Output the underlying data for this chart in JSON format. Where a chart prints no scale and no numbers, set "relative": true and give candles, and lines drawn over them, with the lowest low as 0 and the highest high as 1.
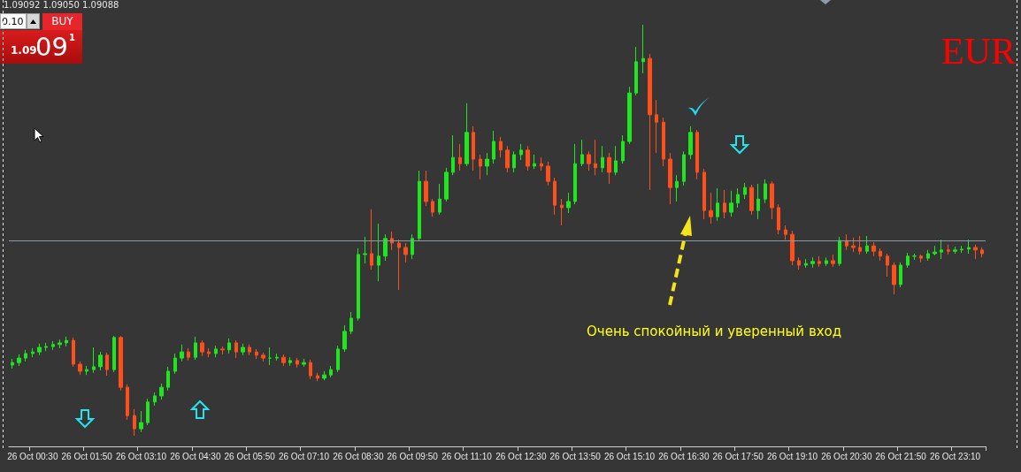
{
  "chart_data": {
    "type": "candlestick",
    "relative": true,
    "categories": [
      null,
      null,
      null,
      "26 Oct 00:30",
      null,
      null,
      null,
      null,
      null,
      null,
      null,
      "26 Oct 01:50",
      null,
      null,
      null,
      null,
      null,
      null,
      null,
      "26 Oct 03:10",
      null,
      null,
      null,
      null,
      null,
      null,
      null,
      "26 Oct 04:30",
      null,
      null,
      null,
      null,
      null,
      null,
      null,
      "26 Oct 05:50",
      null,
      null,
      null,
      null,
      null,
      null,
      null,
      "26 Oct 07:10",
      null,
      null,
      null,
      null,
      null,
      null,
      null,
      "26 Oct 08:30",
      null,
      null,
      null,
      null,
      null,
      null,
      null,
      "26 Oct 09:50",
      null,
      null,
      null,
      null,
      null,
      null,
      null,
      "26 Oct 11:10",
      null,
      null,
      null,
      null,
      null,
      null,
      null,
      "26 Oct 12:30",
      null,
      null,
      null,
      null,
      null,
      null,
      null,
      "26 Oct 13:50",
      null,
      null,
      null,
      null,
      null,
      null,
      null,
      "26 Oct 15:10",
      null,
      null,
      null,
      null,
      null,
      null,
      null,
      "26 Oct 16:30",
      null,
      null,
      null,
      null,
      null,
      null,
      null,
      "26 Oct 17:50",
      null,
      null,
      null,
      null,
      null,
      null,
      null,
      "26 Oct 19:10",
      null,
      null,
      null,
      null,
      null,
      null,
      null,
      "26 Oct 20:30",
      null,
      null,
      null,
      null,
      null,
      null,
      null,
      "26 Oct 21:50",
      null,
      null,
      null,
      null,
      null,
      null,
      null,
      "26 Oct 23:10",
      null,
      null,
      null,
      null
    ],
    "ohlc": [
      [
        0.172,
        0.187,
        0.163,
        0.178
      ],
      [
        0.178,
        0.198,
        0.17,
        0.189
      ],
      [
        0.189,
        0.209,
        0.181,
        0.2
      ],
      [
        0.2,
        0.213,
        0.191,
        0.204
      ],
      [
        0.204,
        0.224,
        0.196,
        0.215
      ],
      [
        0.215,
        0.226,
        0.206,
        0.217
      ],
      [
        0.217,
        0.23,
        0.209,
        0.222
      ],
      [
        0.222,
        0.234,
        0.213,
        0.226
      ],
      [
        0.226,
        0.241,
        0.217,
        0.232
      ],
      [
        0.232,
        0.239,
        0.168,
        0.174
      ],
      [
        0.174,
        0.181,
        0.148,
        0.157
      ],
      [
        0.157,
        0.17,
        0.148,
        0.161
      ],
      [
        0.161,
        0.215,
        0.153,
        0.168
      ],
      [
        0.168,
        0.204,
        0.159,
        0.196
      ],
      [
        0.196,
        0.202,
        0.146,
        0.161
      ],
      [
        0.161,
        0.243,
        0.155,
        0.239
      ],
      [
        0.239,
        0.243,
        0.11,
        0.118
      ],
      [
        0.118,
        0.125,
        0.039,
        0.049
      ],
      [
        0.049,
        0.065,
        0,
        0.017
      ],
      [
        0.017,
        0.06,
        0.009,
        0.032
      ],
      [
        0.032,
        0.09,
        0.026,
        0.082
      ],
      [
        0.082,
        0.105,
        0.073,
        0.097
      ],
      [
        0.097,
        0.127,
        0.088,
        0.118
      ],
      [
        0.118,
        0.168,
        0.11,
        0.157
      ],
      [
        0.157,
        0.2,
        0.151,
        0.189
      ],
      [
        0.189,
        0.222,
        0.181,
        0.204
      ],
      [
        0.204,
        0.213,
        0.183,
        0.191
      ],
      [
        0.191,
        0.241,
        0.185,
        0.226
      ],
      [
        0.226,
        0.232,
        0.194,
        0.204
      ],
      [
        0.204,
        0.213,
        0.191,
        0.2
      ],
      [
        0.2,
        0.219,
        0.191,
        0.211
      ],
      [
        0.211,
        0.217,
        0.198,
        0.209
      ],
      [
        0.209,
        0.237,
        0.2,
        0.226
      ],
      [
        0.226,
        0.232,
        0.189,
        0.204
      ],
      [
        0.204,
        0.224,
        0.196,
        0.215
      ],
      [
        0.215,
        0.222,
        0.196,
        0.204
      ],
      [
        0.204,
        0.211,
        0.187,
        0.196
      ],
      [
        0.196,
        0.202,
        0.181,
        0.189
      ],
      [
        0.189,
        0.215,
        0.172,
        0.189
      ],
      [
        0.189,
        0.2,
        0.183,
        0.191
      ],
      [
        0.191,
        0.198,
        0.17,
        0.178
      ],
      [
        0.178,
        0.191,
        0.17,
        0.183
      ],
      [
        0.183,
        0.189,
        0.166,
        0.174
      ],
      [
        0.174,
        0.187,
        0.168,
        0.178
      ],
      [
        0.178,
        0.185,
        0.138,
        0.146
      ],
      [
        0.146,
        0.153,
        0.133,
        0.14
      ],
      [
        0.14,
        0.157,
        0.135,
        0.148
      ],
      [
        0.148,
        0.17,
        0.142,
        0.161
      ],
      [
        0.161,
        0.219,
        0.155,
        0.211
      ],
      [
        0.211,
        0.269,
        0.204,
        0.254
      ],
      [
        0.254,
        0.301,
        0.247,
        0.286
      ],
      [
        0.286,
        0.456,
        0.28,
        0.441
      ],
      [
        0.441,
        0.484,
        0.419,
        0.443
      ],
      [
        0.443,
        0.551,
        0.404,
        0.415
      ],
      [
        0.415,
        0.516,
        0.376,
        0.437
      ],
      [
        0.437,
        0.49,
        0.426,
        0.48
      ],
      [
        0.48,
        0.497,
        0.452,
        0.469
      ],
      [
        0.469,
        0.477,
        0.355,
        0.458
      ],
      [
        0.458,
        0.469,
        0.422,
        0.441
      ],
      [
        0.441,
        0.49,
        0.43,
        0.48
      ],
      [
        0.48,
        0.645,
        0.473,
        0.619
      ],
      [
        0.619,
        0.645,
        0.559,
        0.57
      ],
      [
        0.57,
        0.576,
        0.533,
        0.544
      ],
      [
        0.544,
        0.613,
        0.538,
        0.576
      ],
      [
        0.576,
        0.652,
        0.57,
        0.641
      ],
      [
        0.641,
        0.731,
        0.634,
        0.677
      ],
      [
        0.677,
        0.71,
        0.645,
        0.662
      ],
      [
        0.662,
        0.809,
        0.656,
        0.738
      ],
      [
        0.738,
        0.753,
        0.645,
        0.673
      ],
      [
        0.673,
        0.684,
        0.624,
        0.656
      ],
      [
        0.656,
        0.688,
        0.634,
        0.673
      ],
      [
        0.673,
        0.742,
        0.662,
        0.716
      ],
      [
        0.716,
        0.727,
        0.677,
        0.695
      ],
      [
        0.695,
        0.705,
        0.641,
        0.652
      ],
      [
        0.652,
        0.692,
        0.641,
        0.684
      ],
      [
        0.684,
        0.71,
        0.671,
        0.695
      ],
      [
        0.695,
        0.705,
        0.645,
        0.656
      ],
      [
        0.656,
        0.684,
        0.649,
        0.662
      ],
      [
        0.662,
        0.677,
        0.645,
        0.656
      ],
      [
        0.656,
        0.667,
        0.609,
        0.619
      ],
      [
        0.619,
        0.628,
        0.538,
        0.561
      ],
      [
        0.561,
        0.576,
        0.512,
        0.555
      ],
      [
        0.555,
        0.591,
        0.542,
        0.57
      ],
      [
        0.57,
        0.71,
        0.563,
        0.662
      ],
      [
        0.662,
        0.72,
        0.656,
        0.684
      ],
      [
        0.684,
        0.692,
        0.645,
        0.662
      ],
      [
        0.662,
        0.72,
        0.634,
        0.652
      ],
      [
        0.652,
        0.705,
        0.641,
        0.677
      ],
      [
        0.677,
        0.688,
        0.613,
        0.641
      ],
      [
        0.641,
        0.705,
        0.634,
        0.669
      ],
      [
        0.669,
        0.731,
        0.662,
        0.716
      ],
      [
        0.716,
        0.849,
        0.71,
        0.834
      ],
      [
        0.834,
        0.946,
        0.828,
        0.91
      ],
      [
        0.91,
        1,
        0.882,
        0.918
      ],
      [
        0.918,
        0.929,
        0.598,
        0.781
      ],
      [
        0.781,
        0.817,
        0.688,
        0.763
      ],
      [
        0.763,
        0.774,
        0.656,
        0.673
      ],
      [
        0.673,
        0.688,
        0.563,
        0.604
      ],
      [
        0.604,
        0.634,
        0.57,
        0.619
      ],
      [
        0.619,
        0.692,
        0.609,
        0.684
      ],
      [
        0.684,
        0.753,
        0.673,
        0.738
      ],
      [
        0.738,
        0.744,
        0.624,
        0.641
      ],
      [
        0.641,
        0.649,
        0.527,
        0.548
      ],
      [
        0.548,
        0.591,
        0.516,
        0.533
      ],
      [
        0.533,
        0.602,
        0.523,
        0.566
      ],
      [
        0.566,
        0.598,
        0.529,
        0.544
      ],
      [
        0.544,
        0.596,
        0.533,
        0.566
      ],
      [
        0.566,
        0.602,
        0.555,
        0.587
      ],
      [
        0.587,
        0.615,
        0.576,
        0.604
      ],
      [
        0.604,
        0.611,
        0.538,
        0.548
      ],
      [
        0.548,
        0.613,
        0.527,
        0.576
      ],
      [
        0.576,
        0.624,
        0.566,
        0.613
      ],
      [
        0.613,
        0.619,
        0.527,
        0.555
      ],
      [
        0.555,
        0.563,
        0.49,
        0.501
      ],
      [
        0.501,
        0.512,
        0.477,
        0.49
      ],
      [
        0.49,
        0.499,
        0.415,
        0.426
      ],
      [
        0.426,
        0.434,
        0.404,
        0.415
      ],
      [
        0.415,
        0.43,
        0.409,
        0.419
      ],
      [
        0.419,
        0.434,
        0.409,
        0.424
      ],
      [
        0.424,
        0.437,
        0.411,
        0.419
      ],
      [
        0.419,
        0.434,
        0.413,
        0.426
      ],
      [
        0.426,
        0.441,
        0.411,
        0.419
      ],
      [
        0.419,
        0.484,
        0.413,
        0.475
      ],
      [
        0.475,
        0.49,
        0.452,
        0.462
      ],
      [
        0.462,
        0.482,
        0.447,
        0.458
      ],
      [
        0.458,
        0.486,
        0.441,
        0.449
      ],
      [
        0.449,
        0.486,
        0.443,
        0.462
      ],
      [
        0.462,
        0.471,
        0.437,
        0.449
      ],
      [
        0.449,
        0.456,
        0.426,
        0.437
      ],
      [
        0.437,
        0.443,
        0.387,
        0.415
      ],
      [
        0.415,
        0.422,
        0.344,
        0.368
      ],
      [
        0.368,
        0.422,
        0.361,
        0.415
      ],
      [
        0.415,
        0.445,
        0.409,
        0.437
      ],
      [
        0.437,
        0.443,
        0.428,
        0.437
      ],
      [
        0.437,
        0.441,
        0.422,
        0.432
      ],
      [
        0.432,
        0.452,
        0.426,
        0.443
      ],
      [
        0.443,
        0.462,
        0.439,
        0.447
      ],
      [
        0.447,
        0.477,
        0.43,
        0.452
      ],
      [
        0.452,
        0.465,
        0.441,
        0.449
      ],
      [
        0.449,
        0.46,
        0.443,
        0.452
      ],
      [
        0.452,
        0.462,
        0.445,
        0.454
      ],
      [
        0.454,
        0.477,
        0.443,
        0.458
      ],
      [
        0.458,
        0.465,
        0.43,
        0.452
      ],
      [
        0.452,
        0.458,
        0.434,
        0.443
      ]
    ],
    "colors": [
      "#1fe61f",
      "#1fe61f",
      "#1fe61f",
      "#1fe61f",
      "#1fe61f",
      "#1fe61f",
      "#1fe61f",
      "#1fe61f",
      "#1fe61f",
      "#ff4f1a",
      "#ff4f1a",
      "#1fe61f",
      "#1fe61f",
      "#1fe61f",
      "#ff4f1a",
      "#1fe61f",
      "#ff4f1a",
      "#ff4f1a",
      "#ff4f1a",
      "#1fe61f",
      "#1fe61f",
      "#1fe61f",
      "#1fe61f",
      "#1fe61f",
      "#1fe61f",
      "#1fe61f",
      "#ff4f1a",
      "#1fe61f",
      "#ff4f1a",
      "#ff4f1a",
      "#1fe61f",
      "#ff4f1a",
      "#1fe61f",
      "#ff4f1a",
      "#1fe61f",
      "#ff4f1a",
      "#ff4f1a",
      "#ff4f1a",
      "#1fe61f",
      "#1fe61f",
      "#ff4f1a",
      "#1fe61f",
      "#ff4f1a",
      "#1fe61f",
      "#ff4f1a",
      "#ff4f1a",
      "#1fe61f",
      "#1fe61f",
      "#1fe61f",
      "#1fe61f",
      "#1fe61f",
      "#1fe61f",
      "#1fe61f",
      "#ff4f1a",
      "#1fe61f",
      "#1fe61f",
      "#ff4f1a",
      "#ff4f1a",
      "#ff4f1a",
      "#1fe61f",
      "#1fe61f",
      "#ff4f1a",
      "#ff4f1a",
      "#1fe61f",
      "#1fe61f",
      "#1fe61f",
      "#ff4f1a",
      "#1fe61f",
      "#ff4f1a",
      "#ff4f1a",
      "#1fe61f",
      "#1fe61f",
      "#ff4f1a",
      "#ff4f1a",
      "#1fe61f",
      "#1fe61f",
      "#ff4f1a",
      "#1fe61f",
      "#ff4f1a",
      "#ff4f1a",
      "#ff4f1a",
      "#ff4f1a",
      "#1fe61f",
      "#1fe61f",
      "#1fe61f",
      "#ff4f1a",
      "#ff4f1a",
      "#1fe61f",
      "#ff4f1a",
      "#1fe61f",
      "#1fe61f",
      "#1fe61f",
      "#1fe61f",
      "#1fe61f",
      "#ff4f1a",
      "#ff4f1a",
      "#ff4f1a",
      "#ff4f1a",
      "#1fe61f",
      "#1fe61f",
      "#1fe61f",
      "#ff4f1a",
      "#ff4f1a",
      "#ff4f1a",
      "#1fe61f",
      "#ff4f1a",
      "#1fe61f",
      "#1fe61f",
      "#1fe61f",
      "#ff4f1a",
      "#1fe61f",
      "#1fe61f",
      "#ff4f1a",
      "#ff4f1a",
      "#ff4f1a",
      "#ff4f1a",
      "#ff4f1a",
      "#1fe61f",
      "#1fe61f",
      "#ff4f1a",
      "#1fe61f",
      "#ff4f1a",
      "#1fe61f",
      "#ff4f1a",
      "#ff4f1a",
      "#ff4f1a",
      "#1fe61f",
      "#ff4f1a",
      "#ff4f1a",
      "#ff4f1a",
      "#ff4f1a",
      "#1fe61f",
      "#1fe61f",
      "#1fe61f",
      "#ff4f1a",
      "#1fe61f",
      "#1fe61f",
      "#1fe61f",
      "#ff4f1a",
      "#1fe61f",
      "#1fe61f",
      "#1fe61f",
      "#ff4f1a",
      "#ff4f1a"
    ],
    "ref_lines": [
      {
        "axis": "y",
        "value": 0.475,
        "color": "#8d9aaa"
      }
    ],
    "annotations": [
      "Очень спокойный и уверенный вход",
      "EUR",
      "1.09092 1.09050 1.09088",
      "0.10",
      "BUY",
      "1.09",
      "09",
      "1"
    ]
  }
}
